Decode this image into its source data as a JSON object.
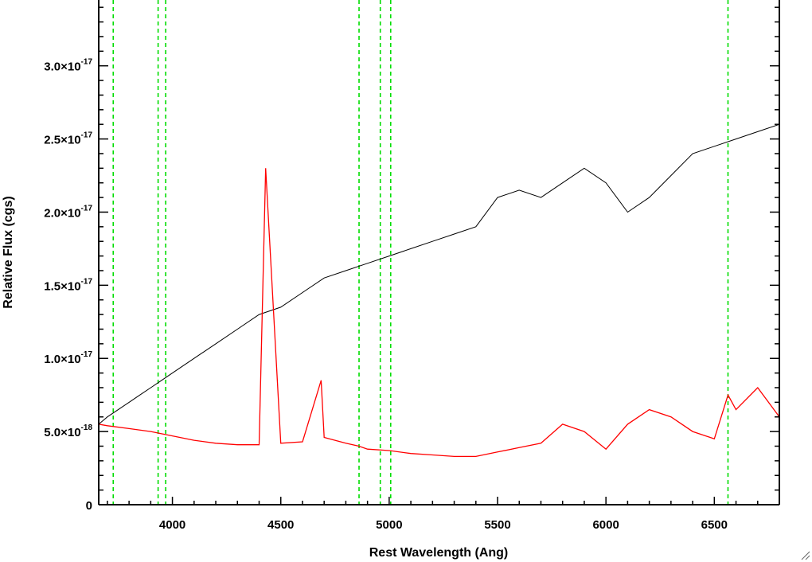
{
  "chart_data": {
    "type": "line",
    "title": "",
    "xlabel": "Rest Wavelength (Ang)",
    "ylabel": "Relative Flux (cgs)",
    "xlim": [
      3660,
      6800
    ],
    "ylim": [
      0,
      3.45e-17
    ],
    "x_ticks": [
      {
        "value": 4000,
        "label": "4000"
      },
      {
        "value": 4500,
        "label": "4500"
      },
      {
        "value": 5000,
        "label": "5000"
      },
      {
        "value": 5500,
        "label": "5500"
      },
      {
        "value": 6000,
        "label": "6000"
      },
      {
        "value": 6500,
        "label": "6500"
      }
    ],
    "y_ticks": [
      {
        "value": 0,
        "mantissa": "0",
        "exponent": ""
      },
      {
        "value": 5e-18,
        "mantissa": "5.0×10",
        "exponent": "-18"
      },
      {
        "value": 1e-17,
        "mantissa": "1.0×10",
        "exponent": "-17"
      },
      {
        "value": 1.5e-17,
        "mantissa": "1.5×10",
        "exponent": "-17"
      },
      {
        "value": 2e-17,
        "mantissa": "2.0×10",
        "exponent": "-17"
      },
      {
        "value": 2.5e-17,
        "mantissa": "2.5×10",
        "exponent": "-17"
      },
      {
        "value": 3e-17,
        "mantissa": "3.0×10",
        "exponent": "-17"
      }
    ],
    "reference_lines_x": [
      3727,
      3934,
      3969,
      4861,
      4959,
      5007,
      6563
    ],
    "series": [
      {
        "color": "#000000",
        "line_width": 1,
        "x": [
          3660,
          3700,
          3750,
          3800,
          3850,
          3900,
          3950,
          4000,
          4100,
          4200,
          4300,
          4400,
          4500,
          4600,
          4700,
          4800,
          4900,
          5000,
          5100,
          5200,
          5300,
          5400,
          5500,
          5600,
          5700,
          5800,
          5900,
          6000,
          6100,
          6200,
          6300,
          6400,
          6500,
          6600,
          6700,
          6800
        ],
        "values": [
          5.5e-18,
          6e-18,
          6.5e-18,
          7e-18,
          7.5e-18,
          8e-18,
          8.5e-18,
          9e-18,
          1e-17,
          1.1e-17,
          1.2e-17,
          1.3e-17,
          1.35e-17,
          1.45e-17,
          1.55e-17,
          1.6e-17,
          1.65e-17,
          1.7e-17,
          1.75e-17,
          1.8e-17,
          1.85e-17,
          1.9e-17,
          2.1e-17,
          2.15e-17,
          2.1e-17,
          2.2e-17,
          2.3e-17,
          2.2e-17,
          2e-17,
          2.1e-17,
          2.25e-17,
          2.4e-17,
          2.45e-17,
          2.5e-17,
          2.55e-17,
          2.6e-17
        ]
      },
      {
        "color": "#ff0000",
        "line_width": 1.3,
        "x": [
          3660,
          3700,
          3800,
          3900,
          4000,
          4100,
          4200,
          4300,
          4400,
          4430,
          4500,
          4600,
          4686,
          4700,
          4800,
          4861,
          4900,
          5000,
          5100,
          5200,
          5300,
          5400,
          5500,
          5600,
          5700,
          5800,
          5900,
          6000,
          6100,
          6200,
          6300,
          6400,
          6500,
          6563,
          6600,
          6700,
          6800
        ],
        "values": [
          5.5e-18,
          5.4e-18,
          5.2e-18,
          5e-18,
          4.7e-18,
          4.4e-18,
          4.2e-18,
          4.1e-18,
          4.1e-18,
          2.3e-17,
          4.2e-18,
          4.3e-18,
          8.5e-18,
          4.6e-18,
          4.2e-18,
          4e-18,
          3.8e-18,
          3.7e-18,
          3.5e-18,
          3.4e-18,
          3.3e-18,
          3.3e-18,
          3.6e-18,
          3.9e-18,
          4.2e-18,
          5.5e-18,
          5e-18,
          3.8e-18,
          5.5e-18,
          6.5e-18,
          6e-18,
          5e-18,
          4.5e-18,
          7.5e-18,
          6.5e-18,
          8e-18,
          6e-18
        ]
      }
    ]
  }
}
